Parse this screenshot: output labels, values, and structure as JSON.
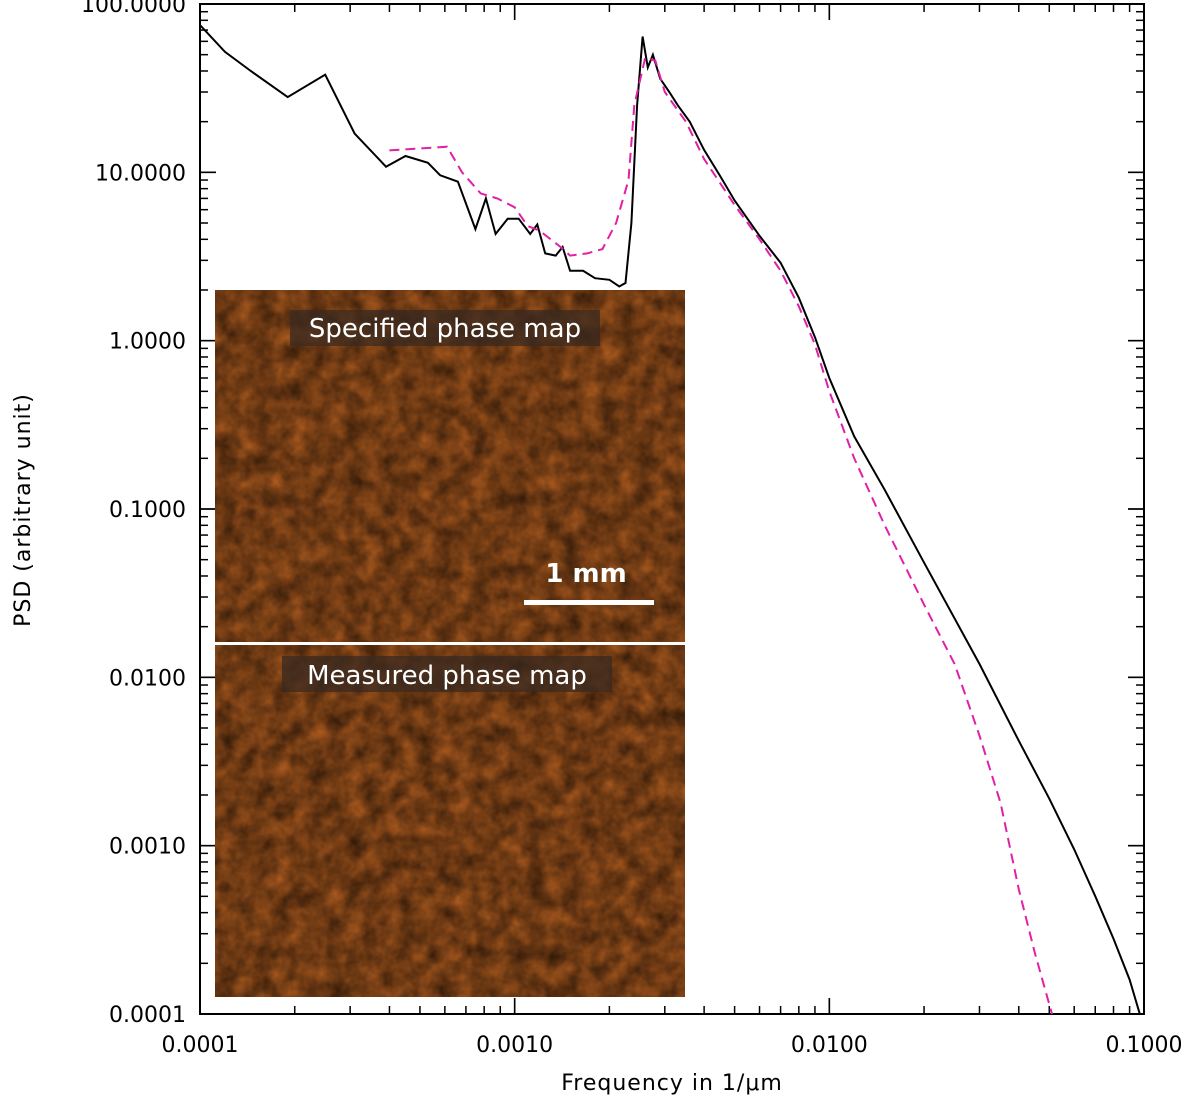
{
  "chart_data": {
    "type": "line",
    "title": "",
    "xlabel": "Frequency in 1/μm",
    "ylabel": "PSD (arbitrary unit)",
    "xscale": "log",
    "yscale": "log",
    "xlim": [
      0.0001,
      0.1
    ],
    "ylim": [
      0.0001,
      100
    ],
    "grid": false,
    "legend": "none",
    "x_ticks": [
      "0.0001",
      "0.0010",
      "0.0100",
      "0.1000"
    ],
    "y_ticks": [
      "0.0001",
      "0.0010",
      "0.0100",
      "0.1000",
      "1.0000",
      "10.0000",
      "100.0000"
    ],
    "series": [
      {
        "color": "#000000",
        "style": "solid",
        "points": [
          [
            0.0001,
            75
          ],
          [
            0.00012,
            52
          ],
          [
            0.000145,
            40
          ],
          [
            0.00019,
            28
          ],
          [
            0.00025,
            38
          ],
          [
            0.00031,
            17
          ],
          [
            0.00039,
            10.8
          ],
          [
            0.00045,
            12.5
          ],
          [
            0.00053,
            11.4
          ],
          [
            0.00058,
            9.6
          ],
          [
            0.00066,
            8.8
          ],
          [
            0.00075,
            4.6
          ],
          [
            0.00081,
            7
          ],
          [
            0.00087,
            4.3
          ],
          [
            0.00095,
            5.3
          ],
          [
            0.00103,
            5.3
          ],
          [
            0.00112,
            4.3
          ],
          [
            0.00118,
            4.9
          ],
          [
            0.00125,
            3.3
          ],
          [
            0.00135,
            3.2
          ],
          [
            0.00142,
            3.6
          ],
          [
            0.0015,
            2.6
          ],
          [
            0.00165,
            2.6
          ],
          [
            0.0018,
            2.35
          ],
          [
            0.002,
            2.3
          ],
          [
            0.00215,
            2.1
          ],
          [
            0.00225,
            2.2
          ],
          [
            0.00235,
            5
          ],
          [
            0.00245,
            25
          ],
          [
            0.00255,
            64
          ],
          [
            0.00265,
            42
          ],
          [
            0.00275,
            50
          ],
          [
            0.0029,
            36
          ],
          [
            0.0031,
            30
          ],
          [
            0.0033,
            25
          ],
          [
            0.0036,
            20
          ],
          [
            0.004,
            13.6
          ],
          [
            0.0045,
            9.5
          ],
          [
            0.005,
            6.8
          ],
          [
            0.006,
            4.2
          ],
          [
            0.007,
            2.9
          ],
          [
            0.008,
            1.8
          ],
          [
            0.009,
            1.05
          ],
          [
            0.01,
            0.6
          ],
          [
            0.012,
            0.27
          ],
          [
            0.015,
            0.13
          ],
          [
            0.02,
            0.048
          ],
          [
            0.03,
            0.012
          ],
          [
            0.04,
            0.0042
          ],
          [
            0.05,
            0.0019
          ],
          [
            0.06,
            0.00095
          ],
          [
            0.07,
            0.0005
          ],
          [
            0.08,
            0.00028
          ],
          [
            0.09,
            0.00016
          ],
          [
            0.097,
            0.0001
          ]
        ]
      },
      {
        "color": "#e020a8",
        "style": "dashed",
        "points": [
          [
            0.0004,
            13.5
          ],
          [
            0.00055,
            14
          ],
          [
            0.00061,
            14.2
          ],
          [
            0.00068,
            10
          ],
          [
            0.00078,
            7.5
          ],
          [
            0.00088,
            7
          ],
          [
            0.001,
            6.2
          ],
          [
            0.0011,
            4.8
          ],
          [
            0.0012,
            4.5
          ],
          [
            0.0014,
            3.6
          ],
          [
            0.0015,
            3.2
          ],
          [
            0.0017,
            3.3
          ],
          [
            0.0019,
            3.5
          ],
          [
            0.0021,
            5
          ],
          [
            0.0023,
            9
          ],
          [
            0.0024,
            25
          ],
          [
            0.0026,
            48
          ],
          [
            0.0028,
            46
          ],
          [
            0.003,
            30
          ],
          [
            0.0035,
            20
          ],
          [
            0.004,
            12
          ],
          [
            0.005,
            6.4
          ],
          [
            0.006,
            4
          ],
          [
            0.007,
            2.6
          ],
          [
            0.008,
            1.6
          ],
          [
            0.009,
            0.95
          ],
          [
            0.01,
            0.5
          ],
          [
            0.012,
            0.2
          ],
          [
            0.015,
            0.08
          ],
          [
            0.02,
            0.027
          ],
          [
            0.025,
            0.012
          ],
          [
            0.03,
            0.0045
          ],
          [
            0.035,
            0.0018
          ],
          [
            0.04,
            0.00055
          ],
          [
            0.045,
            0.00023
          ],
          [
            0.051,
            0.0001
          ]
        ]
      }
    ]
  },
  "inset": {
    "top_label": "Specified phase map",
    "bottom_label": "Measured phase map",
    "scale_bar_label": "1 mm"
  }
}
